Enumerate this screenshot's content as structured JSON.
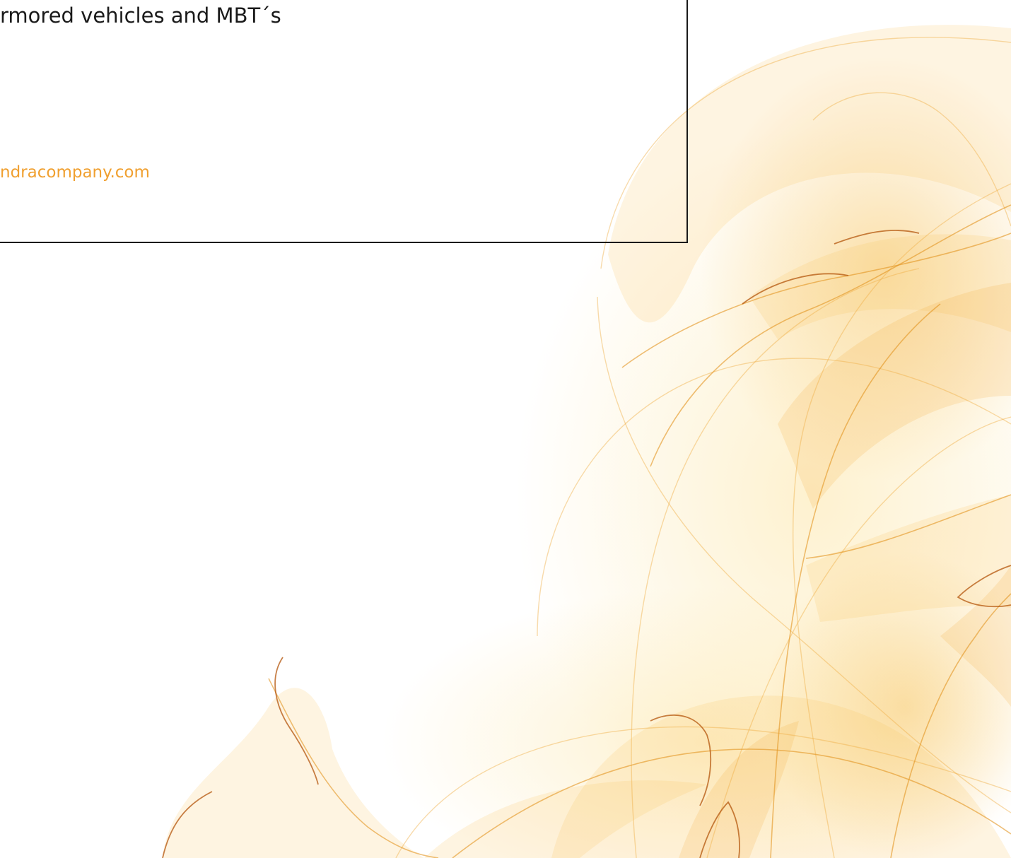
{
  "header": {
    "title_text": "rmored vehicles and MBT´s"
  },
  "contact": {
    "website_text": "ndracompany.com"
  },
  "colors": {
    "text": "#1a1a1a",
    "link": "#f0a030",
    "swirl_light": "#fde8b0",
    "swirl_mid": "#f4b03a",
    "swirl_dark": "#b8560a"
  },
  "decoration": {
    "art_name": "flowing-amber-swirl-graphic"
  }
}
